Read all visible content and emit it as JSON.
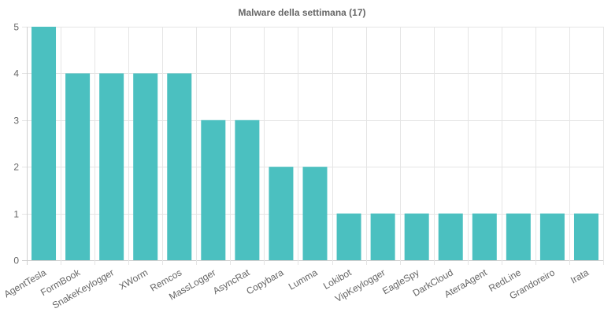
{
  "chart_data": {
    "type": "bar",
    "title": "Malware della settimana (17)",
    "xlabel": "",
    "ylabel": "",
    "categories": [
      "AgentTesla",
      "FormBook",
      "SnakeKeylogger",
      "XWorm",
      "Remcos",
      "MassLogger",
      "AsyncRat",
      "Copybara",
      "Lumma",
      "Lokibot",
      "VipKeylogger",
      "EagleSpy",
      "DarkCloud",
      "AteraAgent",
      "RedLine",
      "Grandoreiro",
      "Irata"
    ],
    "values": [
      5,
      4,
      4,
      4,
      4,
      3,
      3,
      2,
      2,
      1,
      1,
      1,
      1,
      1,
      1,
      1,
      1
    ],
    "ylim": [
      0,
      5
    ],
    "yticks": [
      "0",
      "1",
      "2",
      "3",
      "4",
      "5"
    ],
    "grid": true,
    "legend": "none",
    "colors": {
      "bar": "#4bc0c0",
      "grid": "#e5e5e5",
      "text": "#666666"
    }
  }
}
